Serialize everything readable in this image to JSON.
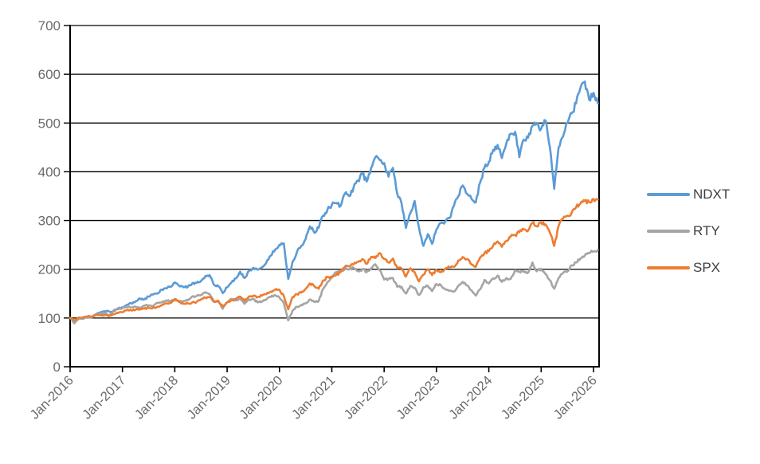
{
  "chart_data": {
    "type": "line",
    "title": "",
    "xlabel": "",
    "ylabel": "",
    "ylim": [
      0,
      700
    ],
    "y_ticks": [
      0,
      100,
      200,
      300,
      400,
      500,
      600,
      700
    ],
    "x_tick_labels": [
      "Jan-2016",
      "Jan-2017",
      "Jan-2018",
      "Jan-2019",
      "Jan-2020",
      "Jan-2021",
      "Jan-2022",
      "Jan-2023",
      "Jan-2024",
      "Jan-2025",
      "Jan-2026"
    ],
    "x_start": "Jan-2016",
    "x_end": "Feb-2026",
    "x_interval": "monthly",
    "grid": true,
    "legend_position": "right",
    "colors": {
      "ndxt": "#5B9BD5",
      "rty": "#A5A5A5",
      "spx": "#ED7D31",
      "axis": "#000000",
      "tick_label": "#6a6a6a",
      "legend_text": "#3f3f3f",
      "background": "#ffffff"
    },
    "series": [
      {
        "name": "NDXT",
        "color": "#5B9BD5",
        "values": [
          100,
          92,
          100,
          99,
          103,
          102,
          108,
          112,
          114,
          113,
          114,
          118,
          122,
          127,
          130,
          134,
          140,
          138,
          144,
          148,
          150,
          158,
          161,
          164,
          173,
          166,
          163,
          164,
          171,
          172,
          176,
          186,
          188,
          168,
          165,
          151,
          163,
          173,
          181,
          195,
          182,
          196,
          203,
          199,
          204,
          214,
          228,
          240,
          250,
          253,
          180,
          215,
          235,
          248,
          262,
          288,
          275,
          285,
          310,
          322,
          332,
          336,
          330,
          355,
          350,
          368,
          382,
          396,
          380,
          408,
          430,
          424,
          418,
          390,
          408,
          355,
          335,
          285,
          315,
          340,
          285,
          248,
          272,
          252,
          282,
          295,
          298,
          305,
          330,
          350,
          372,
          355,
          345,
          337,
          378,
          408,
          420,
          445,
          455,
          428,
          458,
          478,
          482,
          430,
          466,
          470,
          495,
          500,
          488,
          505,
          450,
          365,
          450,
          472,
          500,
          520,
          540,
          572,
          585,
          548,
          562,
          540
        ]
      },
      {
        "name": "RTY",
        "color": "#A5A5A5",
        "values": [
          100,
          89,
          98,
          100,
          102,
          101,
          107,
          109,
          110,
          105,
          116,
          120,
          120,
          122,
          122,
          123,
          121,
          125,
          126,
          124,
          131,
          132,
          136,
          135,
          139,
          133,
          135,
          136,
          144,
          145,
          147,
          153,
          149,
          133,
          135,
          119,
          132,
          139,
          136,
          140,
          129,
          138,
          139,
          132,
          134,
          138,
          143,
          147,
          142,
          130,
          95,
          115,
          123,
          127,
          130,
          138,
          133,
          135,
          160,
          174,
          183,
          194,
          196,
          200,
          200,
          203,
          196,
          200,
          194,
          202,
          210,
          198,
          179,
          180,
          182,
          164,
          164,
          150,
          166,
          162,
          147,
          163,
          166,
          155,
          170,
          167,
          159,
          156,
          154,
          166,
          174,
          167,
          157,
          146,
          159,
          178,
          171,
          181,
          187,
          174,
          182,
          180,
          198,
          195,
          196,
          193,
          214,
          196,
          201,
          190,
          177,
          160,
          182,
          192,
          195,
          208,
          214,
          222,
          228,
          233,
          237,
          240
        ]
      },
      {
        "name": "SPX",
        "color": "#ED7D31",
        "values": [
          100,
          95,
          101,
          101,
          103,
          103,
          106,
          106,
          106,
          104,
          108,
          110,
          112,
          116,
          116,
          117,
          118,
          119,
          121,
          121,
          123,
          126,
          130,
          131,
          138,
          133,
          129,
          130,
          132,
          133,
          138,
          142,
          143,
          133,
          135,
          123,
          132,
          136,
          139,
          144,
          135,
          144,
          146,
          143,
          146,
          149,
          154,
          158,
          158,
          145,
          118,
          143,
          149,
          152,
          160,
          171,
          165,
          160,
          177,
          184,
          183,
          188,
          194,
          205,
          206,
          210,
          215,
          221,
          211,
          225,
          223,
          233,
          221,
          214,
          222,
          202,
          202,
          185,
          202,
          194,
          175,
          189,
          200,
          188,
          199,
          194,
          201,
          204,
          205,
          218,
          225,
          221,
          210,
          205,
          224,
          233,
          237,
          249,
          257,
          246,
          258,
          267,
          270,
          276,
          282,
          279,
          295,
          288,
          296,
          292,
          275,
          248,
          289,
          304,
          310,
          316,
          327,
          335,
          340,
          338,
          344,
          343
        ]
      }
    ]
  }
}
